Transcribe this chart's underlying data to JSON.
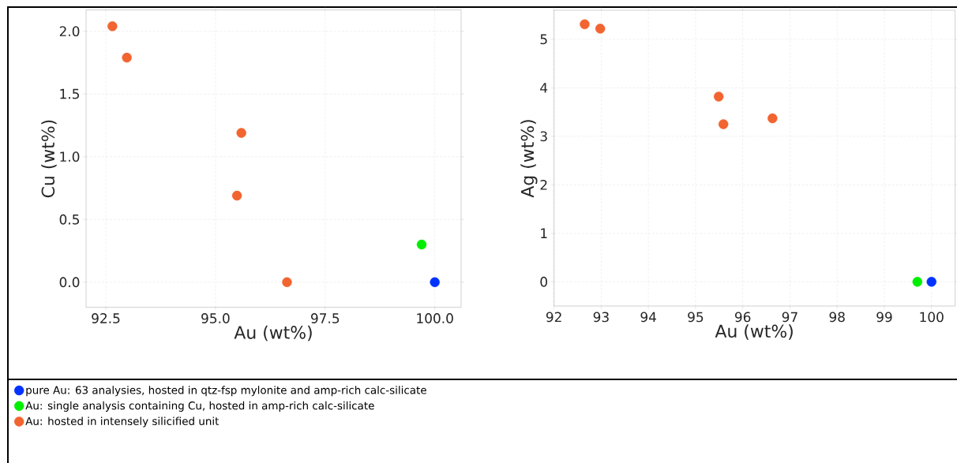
{
  "chart_data": [
    {
      "type": "scatter",
      "xlabel": "Au (wt%)",
      "ylabel": "Cu (wt%)",
      "xlim": [
        92.05,
        100.6
      ],
      "ylim": [
        -0.2,
        2.17
      ],
      "xticks": [
        {
          "value": 92.5,
          "label": "92.5"
        },
        {
          "value": 95,
          "label": "95.0"
        },
        {
          "value": 97.5,
          "label": "97.5"
        },
        {
          "value": 100,
          "label": "100.0"
        }
      ],
      "yticks": [
        {
          "value": 0,
          "label": "0.0"
        },
        {
          "value": 0.5,
          "label": "0.5"
        },
        {
          "value": 1,
          "label": "1.0"
        },
        {
          "value": 1.5,
          "label": "1.5"
        },
        {
          "value": 2,
          "label": "2.0"
        }
      ],
      "grid": true,
      "marker": "circle",
      "legend": "bottom",
      "series": [
        {
          "name": "pure Au: 63 analysies, hosted in qtz-fsp mylonite and amp-rich calc-silicate",
          "color": "#0033ff",
          "x": [
            100.0
          ],
          "values": [
            0.0
          ]
        },
        {
          "name": "Au: single analysis containing Cu, hosted in amp-rich calc-silicate",
          "color": "#00ee00",
          "x": [
            99.7
          ],
          "values": [
            0.3
          ]
        },
        {
          "name": "Au: hosted in intensely silicified unit",
          "color": "#f26430",
          "x": [
            92.65,
            92.98,
            95.49,
            95.59,
            96.63
          ],
          "values": [
            2.04,
            1.79,
            0.69,
            1.19,
            0.0
          ]
        }
      ]
    },
    {
      "type": "scatter",
      "xlabel": "Au (wt%)",
      "ylabel": "Ag (wt%)",
      "xlim": [
        92,
        100.5
      ],
      "ylim": [
        -0.5,
        5.6
      ],
      "xticks": [
        92,
        93,
        94,
        95,
        96,
        97,
        98,
        99,
        100
      ],
      "yticks": [
        0,
        1,
        2,
        3,
        4,
        5
      ],
      "grid": true,
      "marker": "circle",
      "series": [
        {
          "color": "#0033ff",
          "x": [
            100.0
          ],
          "values": [
            0.0
          ]
        },
        {
          "color": "#00ee00",
          "x": [
            99.7
          ],
          "values": [
            0.0
          ]
        },
        {
          "color": "#f26430",
          "x": [
            92.65,
            92.98,
            95.49,
            95.59,
            96.63
          ],
          "values": [
            5.31,
            5.22,
            3.82,
            3.25,
            3.37
          ]
        }
      ]
    }
  ]
}
